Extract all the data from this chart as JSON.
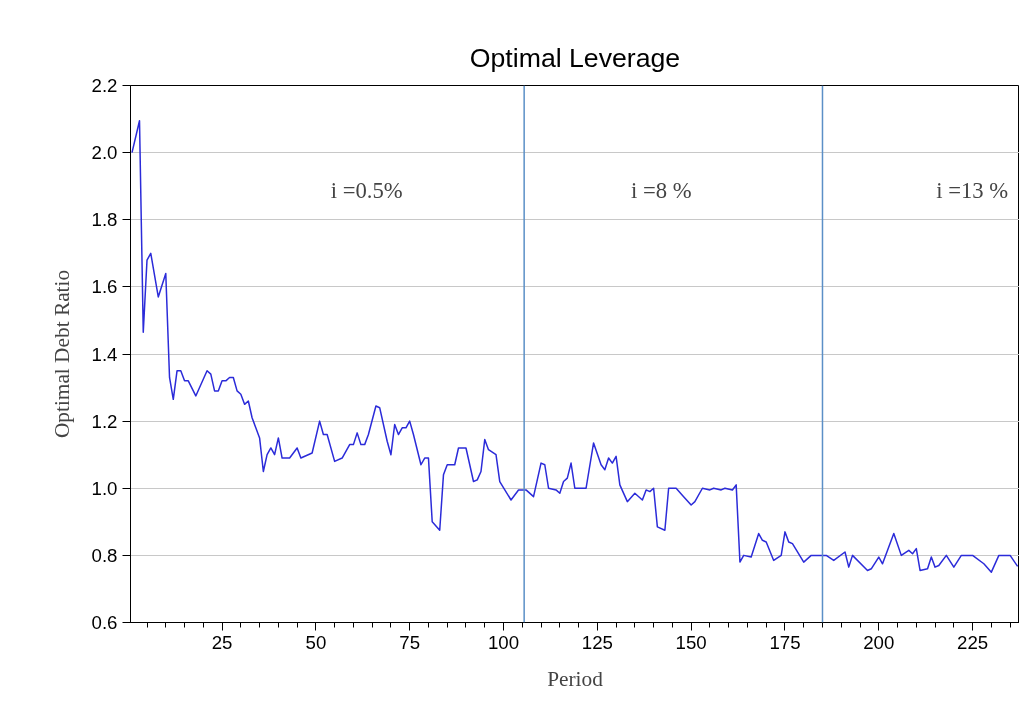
{
  "chart_data": {
    "type": "line",
    "title": "Optimal Leverage",
    "xlabel": "Period",
    "ylabel": "Optimal Debt Ratio",
    "x": [
      1,
      3,
      4,
      5,
      6,
      8,
      10,
      11,
      12,
      13,
      14,
      15,
      16,
      18,
      21,
      22,
      23,
      24,
      25,
      26,
      27,
      28,
      29,
      30,
      31,
      32,
      33,
      35,
      36,
      37,
      38,
      39,
      40,
      41,
      43,
      45,
      46,
      49,
      51,
      52,
      53,
      55,
      57,
      59,
      60,
      61,
      62,
      63,
      64,
      66,
      67,
      69,
      70,
      71,
      72,
      73,
      74,
      75,
      76,
      78,
      79,
      80,
      81,
      83,
      84,
      85,
      87,
      88,
      90,
      92,
      93,
      94,
      95,
      96,
      98,
      99,
      102,
      104,
      106,
      108,
      110,
      111,
      112,
      114,
      115,
      116,
      117,
      118,
      119,
      122,
      124,
      126,
      127,
      128,
      129,
      130,
      131,
      133,
      135,
      137,
      138,
      139,
      140,
      141,
      143,
      144,
      146,
      148,
      150,
      151,
      153,
      155,
      156,
      158,
      159,
      161,
      162,
      163,
      164,
      166,
      168,
      169,
      170,
      172,
      174,
      175,
      176,
      177,
      180,
      182,
      186,
      188,
      191,
      192,
      193,
      197,
      198,
      200,
      201,
      204,
      206,
      208,
      209,
      210,
      211,
      213,
      214,
      215,
      216,
      218,
      220,
      222,
      225,
      228,
      230,
      232,
      235,
      237
    ],
    "series": [
      {
        "color": "#2b2bd9",
        "values": [
          2.0,
          2.095,
          1.465,
          1.68,
          1.7,
          1.57,
          1.64,
          1.33,
          1.265,
          1.35,
          1.35,
          1.32,
          1.32,
          1.275,
          1.35,
          1.34,
          1.29,
          1.29,
          1.32,
          1.32,
          1.33,
          1.33,
          1.29,
          1.28,
          1.25,
          1.26,
          1.21,
          1.15,
          1.05,
          1.1,
          1.12,
          1.1,
          1.15,
          1.09,
          1.09,
          1.12,
          1.09,
          1.105,
          1.2,
          1.16,
          1.16,
          1.08,
          1.09,
          1.13,
          1.13,
          1.165,
          1.13,
          1.13,
          1.16,
          1.245,
          1.24,
          1.14,
          1.1,
          1.19,
          1.16,
          1.18,
          1.18,
          1.2,
          1.16,
          1.07,
          1.09,
          1.09,
          0.9,
          0.875,
          1.04,
          1.07,
          1.07,
          1.12,
          1.12,
          1.02,
          1.025,
          1.05,
          1.145,
          1.115,
          1.1,
          1.02,
          0.965,
          0.995,
          0.995,
          0.975,
          1.075,
          1.07,
          1.0,
          0.995,
          0.985,
          1.02,
          1.03,
          1.075,
          1.0,
          1.0,
          1.135,
          1.07,
          1.055,
          1.09,
          1.075,
          1.095,
          1.01,
          0.96,
          0.985,
          0.965,
          0.995,
          0.99,
          1.0,
          0.885,
          0.875,
          1.0,
          1.0,
          0.975,
          0.95,
          0.96,
          1.0,
          0.995,
          1.0,
          0.995,
          1.0,
          0.995,
          1.01,
          0.78,
          0.8,
          0.795,
          0.865,
          0.845,
          0.84,
          0.785,
          0.8,
          0.87,
          0.84,
          0.835,
          0.78,
          0.8,
          0.8,
          0.785,
          0.81,
          0.765,
          0.8,
          0.755,
          0.76,
          0.795,
          0.775,
          0.865,
          0.8,
          0.815,
          0.805,
          0.82,
          0.755,
          0.76,
          0.795,
          0.765,
          0.77,
          0.8,
          0.765,
          0.8,
          0.8,
          0.775,
          0.75,
          0.8,
          0.8,
          0.767
        ]
      }
    ],
    "xlim": [
      0.6,
      237.5
    ],
    "ylim": [
      0.6,
      2.2
    ],
    "xticks": [
      {
        "value": 5,
        "label": null
      },
      {
        "value": 10,
        "label": null
      },
      {
        "value": 15,
        "label": null
      },
      {
        "value": 20,
        "label": null
      },
      25,
      {
        "value": 30,
        "label": null
      },
      {
        "value": 35,
        "label": null
      },
      {
        "value": 40,
        "label": null
      },
      {
        "value": 45,
        "label": null
      },
      50,
      {
        "value": 55,
        "label": null
      },
      {
        "value": 60,
        "label": null
      },
      {
        "value": 65,
        "label": null
      },
      {
        "value": 70,
        "label": null
      },
      75,
      {
        "value": 80,
        "label": null
      },
      {
        "value": 85,
        "label": null
      },
      {
        "value": 90,
        "label": null
      },
      {
        "value": 95,
        "label": null
      },
      100,
      {
        "value": 105,
        "label": null
      },
      {
        "value": 110,
        "label": null
      },
      {
        "value": 115,
        "label": null
      },
      {
        "value": 120,
        "label": null
      },
      125,
      {
        "value": 130,
        "label": null
      },
      {
        "value": 135,
        "label": null
      },
      {
        "value": 140,
        "label": null
      },
      {
        "value": 145,
        "label": null
      },
      150,
      {
        "value": 155,
        "label": null
      },
      {
        "value": 160,
        "label": null
      },
      {
        "value": 165,
        "label": null
      },
      {
        "value": 170,
        "label": null
      },
      175,
      {
        "value": 180,
        "label": null
      },
      {
        "value": 185,
        "label": null
      },
      {
        "value": 190,
        "label": null
      },
      {
        "value": 195,
        "label": null
      },
      200,
      {
        "value": 205,
        "label": null
      },
      {
        "value": 210,
        "label": null
      },
      {
        "value": 215,
        "label": null
      },
      {
        "value": 220,
        "label": null
      },
      225,
      {
        "value": 230,
        "label": null
      },
      {
        "value": 235,
        "label": null
      }
    ],
    "yticks": [
      0.6,
      0.8,
      {
        "value": 1.0,
        "label": "1.0"
      },
      1.2,
      1.4,
      1.6,
      1.8,
      {
        "value": 2.0,
        "label": "2.0"
      },
      2.2
    ],
    "grid": "y",
    "ref_lines": [
      {
        "axis": "x",
        "value": 105.5,
        "color": "#5b8fc7"
      },
      {
        "axis": "x",
        "value": 185,
        "color": "#5b8fc7"
      }
    ],
    "annotations": [
      "i =0.5%",
      "i =8 %",
      "i =13 %"
    ]
  }
}
